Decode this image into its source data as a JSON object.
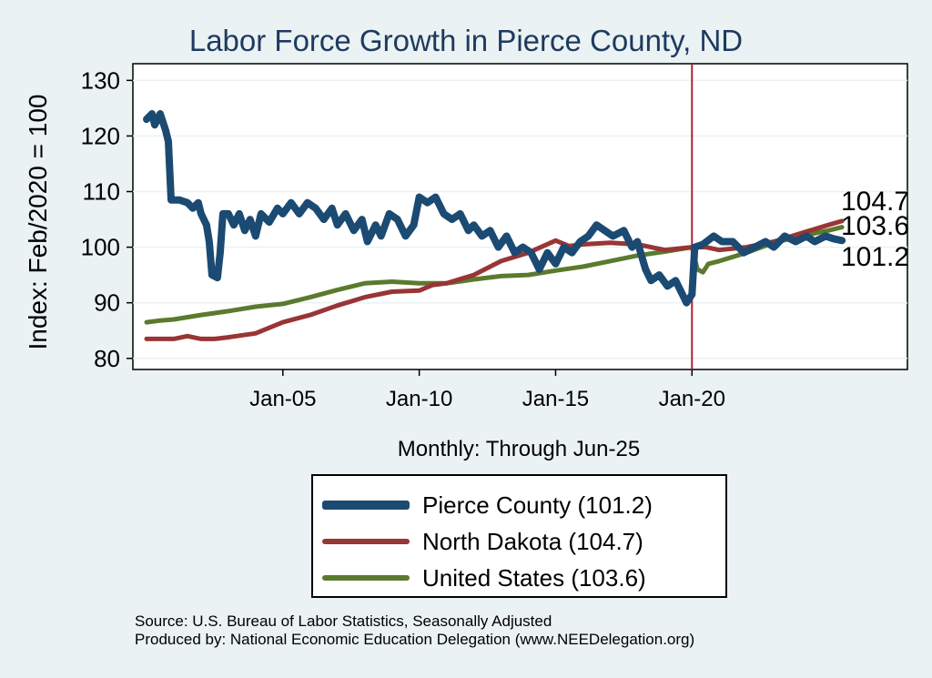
{
  "chart_data": {
    "type": "line",
    "title": "Labor Force Growth in Pierce  County, ND",
    "ylabel": "Index: Feb/2020 = 100",
    "xlabel": "Monthly: Through Jun-25",
    "ylim": [
      78,
      133
    ],
    "yticks": [
      80,
      90,
      100,
      110,
      120,
      130
    ],
    "xlim": [
      1999.5,
      2027.9
    ],
    "xticks": [
      {
        "x": 2005.0,
        "label": "Jan-05"
      },
      {
        "x": 2010.0,
        "label": "Jan-10"
      },
      {
        "x": 2015.0,
        "label": "Jan-15"
      },
      {
        "x": 2020.0,
        "label": "Jan-20"
      }
    ],
    "vline": {
      "x": 2020.0,
      "color": "#b0203a"
    },
    "grid": true,
    "legend_position": "bottom",
    "series": [
      {
        "name": "Pierce  County (101.2)",
        "color": "#1b4a72",
        "width": 8,
        "end_label": "101.2",
        "points": [
          [
            2000.0,
            123
          ],
          [
            2000.2,
            124
          ],
          [
            2000.3,
            122
          ],
          [
            2000.5,
            124
          ],
          [
            2000.7,
            121
          ],
          [
            2000.8,
            119
          ],
          [
            2000.9,
            108.5
          ],
          [
            2001.2,
            108.5
          ],
          [
            2001.5,
            108
          ],
          [
            2001.7,
            107
          ],
          [
            2001.9,
            108
          ],
          [
            2002.0,
            106
          ],
          [
            2002.2,
            104
          ],
          [
            2002.3,
            101
          ],
          [
            2002.4,
            95
          ],
          [
            2002.6,
            94.5
          ],
          [
            2002.7,
            99
          ],
          [
            2002.8,
            106
          ],
          [
            2003.0,
            106
          ],
          [
            2003.2,
            104
          ],
          [
            2003.4,
            106
          ],
          [
            2003.6,
            103
          ],
          [
            2003.8,
            105
          ],
          [
            2004.0,
            102
          ],
          [
            2004.2,
            106
          ],
          [
            2004.5,
            104.5
          ],
          [
            2004.8,
            107
          ],
          [
            2005.0,
            106
          ],
          [
            2005.3,
            108
          ],
          [
            2005.6,
            106
          ],
          [
            2005.9,
            108
          ],
          [
            2006.2,
            107
          ],
          [
            2006.5,
            105
          ],
          [
            2006.8,
            107
          ],
          [
            2007.0,
            104
          ],
          [
            2007.3,
            106
          ],
          [
            2007.6,
            103
          ],
          [
            2007.9,
            105
          ],
          [
            2008.1,
            101
          ],
          [
            2008.4,
            104
          ],
          [
            2008.6,
            102
          ],
          [
            2008.9,
            106
          ],
          [
            2009.2,
            105
          ],
          [
            2009.5,
            102
          ],
          [
            2009.8,
            104
          ],
          [
            2010.0,
            109
          ],
          [
            2010.3,
            108
          ],
          [
            2010.6,
            109
          ],
          [
            2010.9,
            106
          ],
          [
            2011.2,
            105
          ],
          [
            2011.5,
            106
          ],
          [
            2011.8,
            103
          ],
          [
            2012.0,
            104
          ],
          [
            2012.3,
            102
          ],
          [
            2012.6,
            103
          ],
          [
            2012.9,
            100
          ],
          [
            2013.2,
            102
          ],
          [
            2013.5,
            99
          ],
          [
            2013.8,
            100
          ],
          [
            2014.1,
            99
          ],
          [
            2014.4,
            96
          ],
          [
            2014.7,
            99
          ],
          [
            2015.0,
            97
          ],
          [
            2015.3,
            100
          ],
          [
            2015.6,
            99
          ],
          [
            2015.9,
            101
          ],
          [
            2016.2,
            102
          ],
          [
            2016.5,
            104
          ],
          [
            2016.8,
            103
          ],
          [
            2017.1,
            102
          ],
          [
            2017.5,
            103
          ],
          [
            2017.8,
            100
          ],
          [
            2018.0,
            101
          ],
          [
            2018.3,
            96
          ],
          [
            2018.5,
            94
          ],
          [
            2018.8,
            95
          ],
          [
            2019.1,
            93
          ],
          [
            2019.4,
            94
          ],
          [
            2019.6,
            92
          ],
          [
            2019.8,
            90
          ],
          [
            2020.0,
            91.5
          ],
          [
            2020.1,
            100
          ],
          [
            2020.4,
            100.5
          ],
          [
            2020.8,
            102
          ],
          [
            2021.1,
            101
          ],
          [
            2021.5,
            101
          ],
          [
            2021.9,
            99
          ],
          [
            2022.3,
            100
          ],
          [
            2022.7,
            101
          ],
          [
            2023.0,
            100
          ],
          [
            2023.4,
            102
          ],
          [
            2023.8,
            101
          ],
          [
            2024.2,
            102
          ],
          [
            2024.5,
            101
          ],
          [
            2024.9,
            102
          ],
          [
            2025.2,
            101.5
          ],
          [
            2025.5,
            101.2
          ]
        ]
      },
      {
        "name": "North Dakota (104.7)",
        "color": "#993535",
        "width": 5,
        "end_label": "104.7",
        "points": [
          [
            2000.0,
            83.5
          ],
          [
            2000.5,
            83.5
          ],
          [
            2001.0,
            83.5
          ],
          [
            2001.5,
            84
          ],
          [
            2002.0,
            83.5
          ],
          [
            2002.5,
            83.5
          ],
          [
            2003.0,
            83.8
          ],
          [
            2004.0,
            84.5
          ],
          [
            2005.0,
            86.5
          ],
          [
            2006.0,
            87.8
          ],
          [
            2007.0,
            89.5
          ],
          [
            2008.0,
            91
          ],
          [
            2009.0,
            92
          ],
          [
            2010.0,
            92.2
          ],
          [
            2010.5,
            93.2
          ],
          [
            2011.0,
            93.5
          ],
          [
            2012.0,
            95
          ],
          [
            2013.0,
            97.5
          ],
          [
            2014.0,
            99
          ],
          [
            2015.0,
            101.2
          ],
          [
            2015.5,
            100.2
          ],
          [
            2016.0,
            100.5
          ],
          [
            2017.0,
            100.8
          ],
          [
            2018.0,
            100.5
          ],
          [
            2019.0,
            99.5
          ],
          [
            2020.0,
            100
          ],
          [
            2020.5,
            100
          ],
          [
            2021.0,
            99.5
          ],
          [
            2022.0,
            100
          ],
          [
            2023.0,
            101
          ],
          [
            2024.0,
            102.5
          ],
          [
            2025.0,
            104
          ],
          [
            2025.5,
            104.7
          ]
        ]
      },
      {
        "name": "United States (103.6)",
        "color": "#5b7a2e",
        "width": 5,
        "end_label": "103.6",
        "points": [
          [
            2000.0,
            86.5
          ],
          [
            2000.5,
            86.8
          ],
          [
            2001.0,
            87
          ],
          [
            2002.0,
            87.8
          ],
          [
            2003.0,
            88.5
          ],
          [
            2004.0,
            89.3
          ],
          [
            2005.0,
            89.8
          ],
          [
            2006.0,
            91
          ],
          [
            2007.0,
            92.3
          ],
          [
            2008.0,
            93.5
          ],
          [
            2009.0,
            93.8
          ],
          [
            2010.0,
            93.5
          ],
          [
            2011.0,
            93.5
          ],
          [
            2012.0,
            94.2
          ],
          [
            2013.0,
            94.8
          ],
          [
            2014.0,
            95
          ],
          [
            2015.0,
            95.8
          ],
          [
            2016.0,
            96.5
          ],
          [
            2017.0,
            97.5
          ],
          [
            2018.0,
            98.5
          ],
          [
            2019.0,
            99.2
          ],
          [
            2020.0,
            100
          ],
          [
            2020.2,
            96
          ],
          [
            2020.4,
            95.5
          ],
          [
            2020.6,
            97
          ],
          [
            2021.0,
            97.5
          ],
          [
            2022.0,
            99
          ],
          [
            2023.0,
            100.8
          ],
          [
            2024.0,
            102
          ],
          [
            2025.0,
            103
          ],
          [
            2025.5,
            103.6
          ]
        ]
      }
    ],
    "source_line1": "Source: U.S. Bureau of Labor Statistics, Seasonally Adjusted",
    "source_line2": "Produced by: National Economic Education Delegation (www.NEEDelegation.org)"
  }
}
